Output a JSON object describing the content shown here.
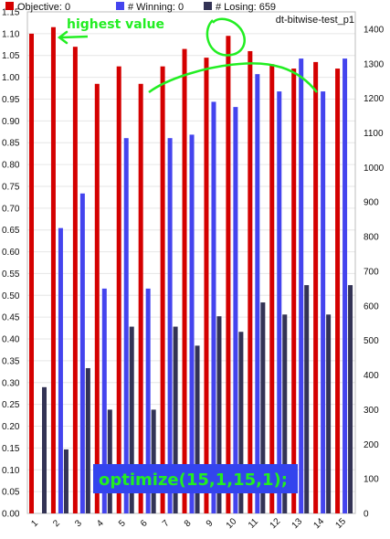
{
  "legend": [
    {
      "label": "Objective: 0",
      "color": "#d40000"
    },
    {
      "label": "# Winning: 0",
      "color": "#4444ee"
    },
    {
      "label": "# Losing: 659",
      "color": "#333355"
    }
  ],
  "subtitle": "dt-bitwise-test_p1",
  "annotations": {
    "highest": "highest value",
    "optimize": "optimize(15,1,15,1);"
  },
  "colors": {
    "objective": "#d40000",
    "winning": "#4444ee",
    "losing": "#333355",
    "annotation": "#22ee22",
    "annotation_box": "#3344ee"
  },
  "chart_data": {
    "type": "bar",
    "categories": [
      "1",
      "2",
      "3",
      "4",
      "5",
      "6",
      "7",
      "8",
      "9",
      "10",
      "11",
      "12",
      "13",
      "14",
      "15"
    ],
    "y_left": {
      "range": [
        0,
        1.15
      ],
      "ticks": [
        "0.00",
        "0.05",
        "0.10",
        "0.15",
        "0.20",
        "0.25",
        "0.30",
        "0.35",
        "0.40",
        "0.45",
        "0.50",
        "0.55",
        "0.60",
        "0.65",
        "0.70",
        "0.75",
        "0.80",
        "0.85",
        "0.90",
        "0.95",
        "1.00",
        "1.05",
        "1.10",
        "1.15"
      ]
    },
    "y_right": {
      "range": [
        0,
        1450
      ],
      "ticks": [
        "0",
        "100",
        "200",
        "300",
        "400",
        "500",
        "600",
        "700",
        "800",
        "900",
        "1000",
        "1100",
        "1200",
        "1300",
        "1400"
      ]
    },
    "grid": true,
    "legend_position": "top-left",
    "series": [
      {
        "name": "Objective",
        "axis": "left",
        "values": [
          1.1,
          1.115,
          1.07,
          0.985,
          1.025,
          0.985,
          1.025,
          1.065,
          1.045,
          1.095,
          1.06,
          1.03,
          1.02,
          1.035,
          1.02
        ]
      },
      {
        "name": "# Winning",
        "axis": "right",
        "values": [
          null,
          825,
          925,
          650,
          1085,
          650,
          1085,
          1095,
          1190,
          1175,
          1270,
          1220,
          1315,
          1220,
          1315
        ]
      },
      {
        "name": "# Losing",
        "axis": "right",
        "values": [
          365,
          185,
          420,
          300,
          540,
          300,
          540,
          485,
          570,
          525,
          610,
          575,
          660,
          575,
          660
        ]
      }
    ]
  }
}
